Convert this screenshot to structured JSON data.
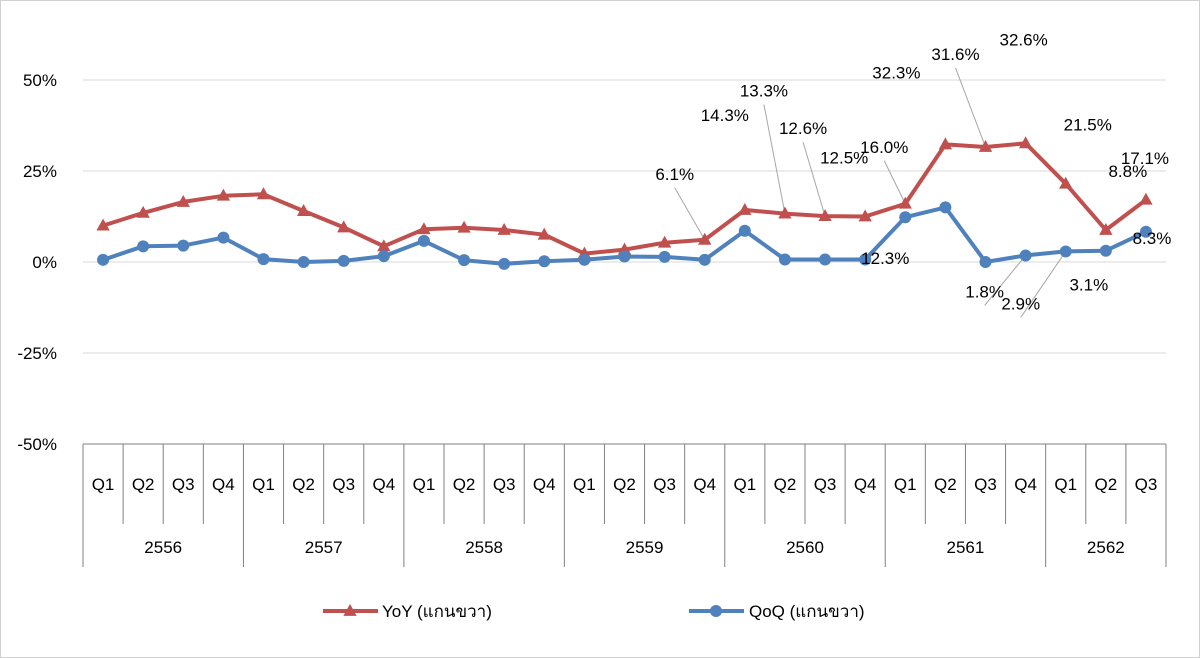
{
  "chart_data": {
    "type": "line",
    "title": "",
    "xlabel": "",
    "ylabel": "",
    "ylim": [
      -50,
      50
    ],
    "yticks": [
      "50%",
      "25%",
      "0%",
      "-25%",
      "-50%"
    ],
    "ytick_values": [
      50,
      25,
      0,
      -25,
      -50
    ],
    "quarters": [
      "Q1",
      "Q2",
      "Q3",
      "Q4",
      "Q1",
      "Q2",
      "Q3",
      "Q4",
      "Q1",
      "Q2",
      "Q3",
      "Q4",
      "Q1",
      "Q2",
      "Q3",
      "Q4",
      "Q1",
      "Q2",
      "Q3",
      "Q4",
      "Q1",
      "Q2",
      "Q3",
      "Q4",
      "Q1",
      "Q2",
      "Q3"
    ],
    "years": [
      "2556",
      "2557",
      "2558",
      "2559",
      "2560",
      "2561",
      "2562"
    ],
    "year_quarter_counts": [
      4,
      4,
      4,
      4,
      4,
      4,
      3
    ],
    "series": [
      {
        "name": "YoY (แกนขวา)",
        "color": "#c0504d",
        "marker": "triangle",
        "values": [
          10.0,
          13.5,
          16.5,
          18.2,
          18.6,
          14.0,
          9.5,
          4.3,
          9.0,
          9.4,
          8.8,
          7.5,
          2.3,
          3.4,
          5.3,
          6.1,
          14.3,
          13.3,
          12.6,
          12.5,
          16.0,
          32.3,
          31.6,
          32.6,
          21.5,
          8.8,
          17.1
        ]
      },
      {
        "name": "QoQ (แกนขวา)",
        "color": "#4f81bd",
        "marker": "circle",
        "values": [
          0.6,
          4.3,
          4.5,
          6.7,
          0.8,
          0.0,
          0.3,
          1.6,
          5.8,
          0.5,
          -0.5,
          0.2,
          0.6,
          1.5,
          1.4,
          0.6,
          8.6,
          0.7,
          0.7,
          0.7,
          12.3,
          15.0,
          0.0,
          1.8,
          2.9,
          3.1,
          8.3
        ]
      }
    ],
    "annotations": [
      {
        "text": "6.1%",
        "series": 0,
        "index": 15
      },
      {
        "text": "14.3%",
        "series": 0,
        "index": 16
      },
      {
        "text": "13.3%",
        "series": 0,
        "index": 17
      },
      {
        "text": "12.6%",
        "series": 0,
        "index": 18
      },
      {
        "text": "12.5%",
        "series": 0,
        "index": 19
      },
      {
        "text": "16.0%",
        "series": 0,
        "index": 20
      },
      {
        "text": "32.3%",
        "series": 0,
        "index": 21
      },
      {
        "text": "31.6%",
        "series": 0,
        "index": 22
      },
      {
        "text": "32.6%",
        "series": 0,
        "index": 23
      },
      {
        "text": "21.5%",
        "series": 0,
        "index": 24
      },
      {
        "text": "8.8%",
        "series": 0,
        "index": 25
      },
      {
        "text": "17.1%",
        "series": 0,
        "index": 26
      },
      {
        "text": "12.3%",
        "series": 1,
        "index": 20
      },
      {
        "text": "1.8%",
        "series": 1,
        "index": 23
      },
      {
        "text": "2.9%",
        "series": 1,
        "index": 24
      },
      {
        "text": "3.1%",
        "series": 1,
        "index": 25
      },
      {
        "text": "8.3%",
        "series": 1,
        "index": 26
      }
    ],
    "legend_position": "bottom"
  }
}
